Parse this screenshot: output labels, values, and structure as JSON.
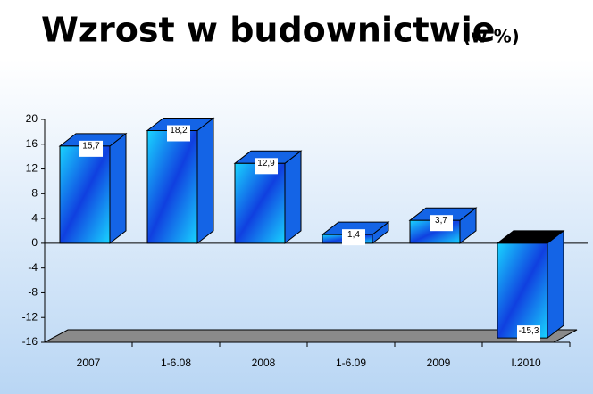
{
  "chart_data": {
    "type": "bar3d",
    "title": "Wzrost w budownictwie",
    "subtitle": "(w %)",
    "categories": [
      "2007",
      "1-6.08",
      "2008",
      "1-6.09",
      "2009",
      "I.2010"
    ],
    "values": [
      15.7,
      18.2,
      12.9,
      1.4,
      3.7,
      -15.3
    ],
    "value_labels": [
      "15,7",
      "18,2",
      "12,9",
      "1,4",
      "3,7",
      "-15,3"
    ],
    "color": "#1464e6",
    "ylim": [
      -16,
      20
    ],
    "yticks": [
      20,
      16,
      12,
      8,
      4,
      0,
      -4,
      -8,
      -12,
      -16
    ]
  }
}
